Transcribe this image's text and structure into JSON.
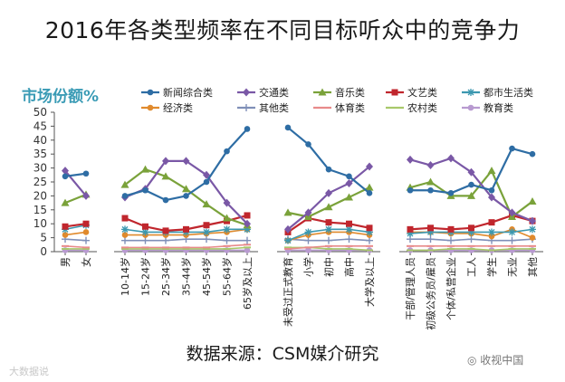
{
  "title": "2016年各类型频率在不同目标听众中的竞争力",
  "source": "数据来源：CSM媒介研究",
  "watermark_left": "大数据说",
  "watermark_right": "收视中国",
  "colors": {
    "axis": "#555555",
    "ylabel": "#3a9bb5"
  },
  "chart_data": {
    "type": "line",
    "ylabel": "市场份额%",
    "ylim": [
      0,
      50
    ],
    "yticks": [
      0,
      5,
      10,
      15,
      20,
      25,
      30,
      35,
      40,
      45,
      50
    ],
    "grid": false,
    "legend_position": "top-right",
    "categories": [
      "男",
      "女",
      "10-14岁",
      "15-24岁",
      "25-34岁",
      "35-44岁",
      "45-54岁",
      "55-64岁",
      "65岁及以上",
      "未受过正式教育",
      "小学",
      "初中",
      "高中",
      "大学及以上",
      "干部/管理人员",
      "初级公务员/雇员",
      "个体/私营企业",
      "工人",
      "学生",
      "无业",
      "其他"
    ],
    "groups": [
      [
        0,
        1
      ],
      [
        2,
        8
      ],
      [
        9,
        13
      ],
      [
        14,
        20
      ]
    ],
    "series": [
      {
        "name": "新闻综合类",
        "color": "#2e6da4",
        "marker": "circle",
        "values": [
          27,
          28,
          20,
          22,
          18.5,
          20,
          25,
          36,
          44,
          44.5,
          38.5,
          29.5,
          27,
          21,
          22,
          22,
          21,
          24,
          22,
          37,
          35
        ]
      },
      {
        "name": "交通类",
        "color": "#7a58a6",
        "marker": "diamond",
        "values": [
          29,
          20,
          19.5,
          22.5,
          32.5,
          32.5,
          27.5,
          17.5,
          10,
          8,
          14,
          21,
          24.5,
          30.5,
          33,
          31,
          33.5,
          28.5,
          19.5,
          14,
          11
        ]
      },
      {
        "name": "音乐类",
        "color": "#7aa23a",
        "marker": "triangle",
        "values": [
          17.5,
          20.5,
          24,
          29.5,
          27,
          22.5,
          17,
          12,
          9.5,
          14,
          12.5,
          16,
          19.5,
          23,
          23,
          25,
          20,
          20,
          29,
          12.5,
          18
        ]
      },
      {
        "name": "文艺类",
        "color": "#c0262d",
        "marker": "square",
        "values": [
          9,
          10,
          12,
          9,
          7.5,
          8,
          9.5,
          11,
          13,
          7,
          12,
          10.5,
          10,
          8.5,
          8,
          8.5,
          8,
          8.5,
          10.5,
          13,
          11
        ]
      },
      {
        "name": "都市生活类",
        "color": "#3c98b0",
        "marker": "star",
        "values": [
          8,
          9.5,
          8,
          7,
          7,
          7,
          7,
          8,
          8,
          4,
          7,
          8,
          8,
          7,
          6.5,
          7,
          7,
          7,
          7,
          7,
          8
        ]
      },
      {
        "name": "经济类",
        "color": "#e08a2d",
        "marker": "circle",
        "values": [
          6,
          7,
          6,
          6,
          6,
          6,
          6.5,
          7,
          8,
          4,
          6,
          7,
          7,
          6,
          7,
          7,
          6.5,
          6.5,
          5.5,
          8,
          5
        ]
      },
      {
        "name": "其他类",
        "color": "#7f8fb8",
        "marker": "plus",
        "values": [
          4.5,
          4,
          4,
          4,
          4,
          4.5,
          4.5,
          4,
          4,
          4.5,
          4,
          4,
          4.5,
          4,
          4.5,
          4.5,
          4,
          4.5,
          4,
          4,
          4.5
        ]
      },
      {
        "name": "体育类",
        "color": "#e88a8a",
        "marker": "dash",
        "values": [
          2,
          1.5,
          1.5,
          1.5,
          1.5,
          1.5,
          1.5,
          2,
          2.5,
          1,
          1.5,
          2,
          2,
          2,
          2,
          2,
          2,
          2,
          2,
          2,
          2
        ]
      },
      {
        "name": "农村类",
        "color": "#a8c86a",
        "marker": "dash",
        "values": [
          1,
          1,
          1,
          1,
          1,
          1,
          1,
          1,
          1.5,
          1.5,
          1.5,
          1,
          1,
          0.5,
          0.5,
          0.5,
          1,
          1,
          0.5,
          1,
          1
        ]
      },
      {
        "name": "教育类",
        "color": "#b89ad0",
        "marker": "circle",
        "values": [
          0.5,
          0.5,
          0.5,
          0.5,
          0.5,
          0.5,
          0.5,
          0.5,
          0.5,
          0.5,
          0.5,
          0.5,
          0.5,
          0.5,
          0.5,
          0.5,
          0.5,
          0.5,
          0.5,
          0.5,
          0.5
        ]
      }
    ]
  }
}
